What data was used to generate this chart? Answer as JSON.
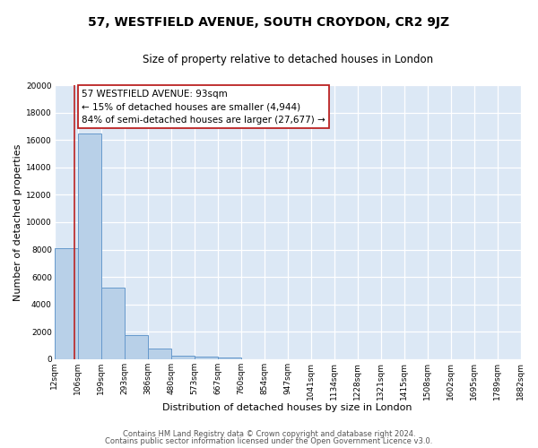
{
  "title": "57, WESTFIELD AVENUE, SOUTH CROYDON, CR2 9JZ",
  "subtitle": "Size of property relative to detached houses in London",
  "xlabel": "Distribution of detached houses by size in London",
  "ylabel": "Number of detached properties",
  "bar_edges": [
    12,
    106,
    199,
    293,
    386,
    480,
    573,
    667,
    760,
    854,
    947,
    1041,
    1134,
    1228,
    1321,
    1415,
    1508,
    1602,
    1695,
    1789,
    1882
  ],
  "bar_heights": [
    8100,
    16500,
    5200,
    1750,
    750,
    280,
    170,
    130,
    0,
    0,
    0,
    0,
    0,
    0,
    0,
    0,
    0,
    0,
    0,
    0
  ],
  "bar_color": "#b8d0e8",
  "bar_edge_color": "#6699cc",
  "property_size": 93,
  "vline_color": "#bb2222",
  "annotation_title": "57 WESTFIELD AVENUE: 93sqm",
  "annotation_line1": "← 15% of detached houses are smaller (4,944)",
  "annotation_line2": "84% of semi-detached houses are larger (27,677) →",
  "annotation_box_edge_color": "#bb2222",
  "annotation_box_face_color": "#ffffff",
  "ylim": [
    0,
    20000
  ],
  "yticks": [
    0,
    2000,
    4000,
    6000,
    8000,
    10000,
    12000,
    14000,
    16000,
    18000,
    20000
  ],
  "tick_labels": [
    "12sqm",
    "106sqm",
    "199sqm",
    "293sqm",
    "386sqm",
    "480sqm",
    "573sqm",
    "667sqm",
    "760sqm",
    "854sqm",
    "947sqm",
    "1041sqm",
    "1134sqm",
    "1228sqm",
    "1321sqm",
    "1415sqm",
    "1508sqm",
    "1602sqm",
    "1695sqm",
    "1789sqm",
    "1882sqm"
  ],
  "footer1": "Contains HM Land Registry data © Crown copyright and database right 2024.",
  "footer2": "Contains public sector information licensed under the Open Government Licence v3.0.",
  "bg_color": "#ffffff",
  "plot_bg_color": "#dce8f5",
  "grid_color": "#ffffff",
  "title_fontsize": 10,
  "subtitle_fontsize": 8.5,
  "axis_label_fontsize": 8,
  "tick_fontsize": 6.5,
  "footer_fontsize": 6,
  "annotation_fontsize": 7.5
}
